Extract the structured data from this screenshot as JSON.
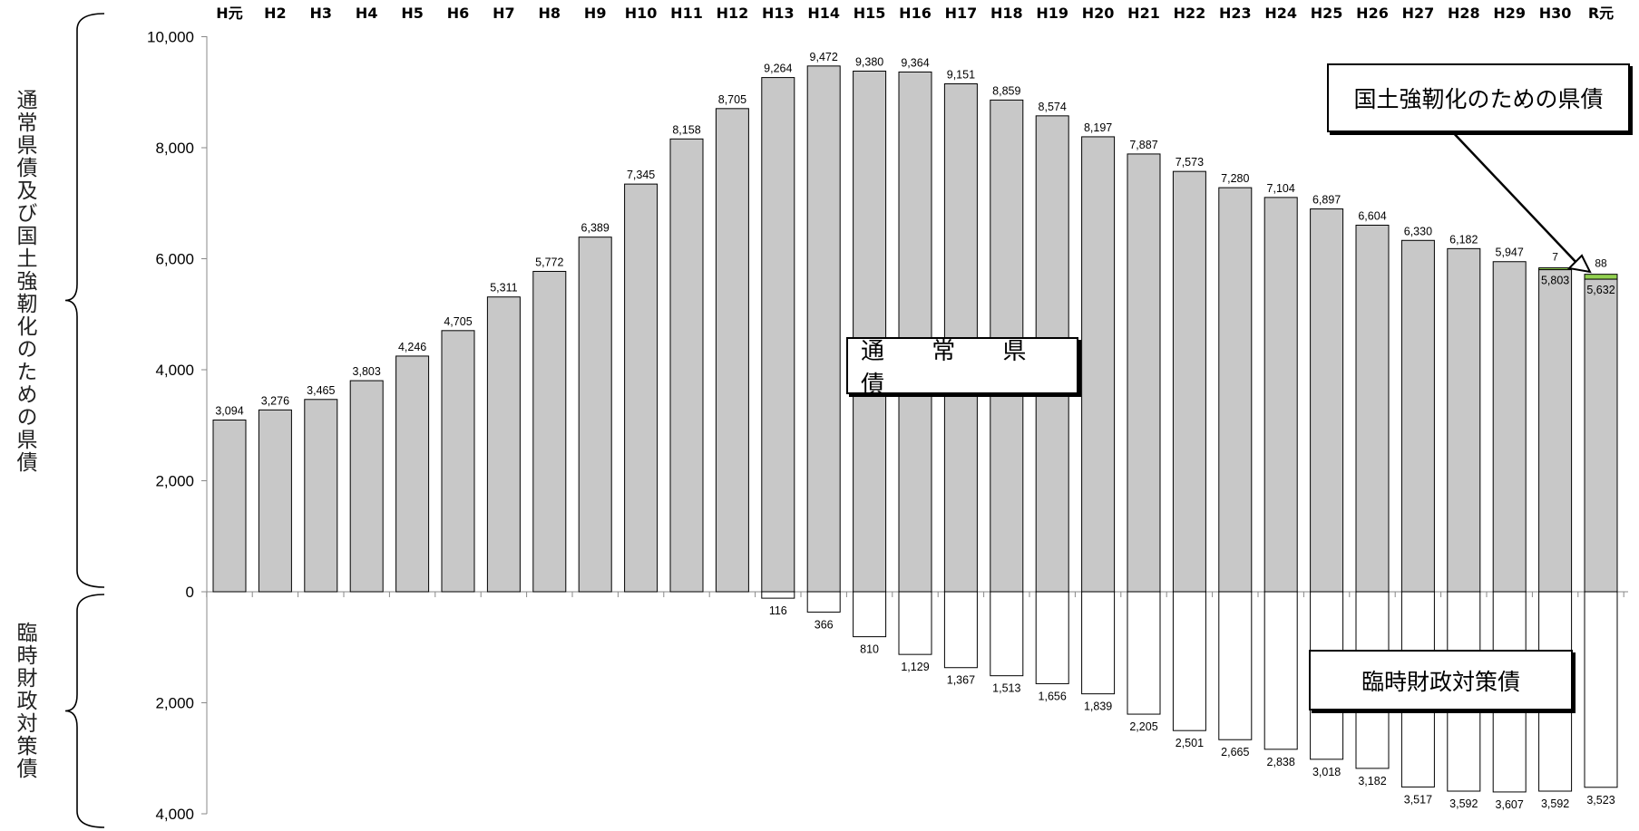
{
  "chart_data": {
    "type": "bar",
    "categories": [
      "H元",
      "H2",
      "H3",
      "H4",
      "H5",
      "H6",
      "H7",
      "H8",
      "H9",
      "H10",
      "H11",
      "H12",
      "H13",
      "H14",
      "H15",
      "H16",
      "H17",
      "H18",
      "H19",
      "H20",
      "H21",
      "H22",
      "H23",
      "H24",
      "H25",
      "H26",
      "H27",
      "H28",
      "H29",
      "H30",
      "R元"
    ],
    "series": [
      {
        "name": "通 常 県 債",
        "values": [
          3094,
          3276,
          3465,
          3803,
          4246,
          4705,
          5311,
          5772,
          6389,
          7345,
          8158,
          8705,
          9264,
          9472,
          9380,
          9364,
          9151,
          8859,
          8574,
          8197,
          7887,
          7573,
          7280,
          7104,
          6897,
          6604,
          6330,
          6182,
          5947,
          5803,
          5632
        ]
      },
      {
        "name": "国土強靭化のための県債",
        "values": [
          0,
          0,
          0,
          0,
          0,
          0,
          0,
          0,
          0,
          0,
          0,
          0,
          0,
          0,
          0,
          0,
          0,
          0,
          0,
          0,
          0,
          0,
          0,
          0,
          0,
          0,
          0,
          0,
          0,
          7,
          88
        ]
      },
      {
        "name": "臨時財政対策債",
        "values": [
          0,
          0,
          0,
          0,
          0,
          0,
          0,
          0,
          0,
          0,
          0,
          0,
          116,
          366,
          810,
          1129,
          1367,
          1513,
          1656,
          1839,
          2205,
          2501,
          2665,
          2838,
          3018,
          3182,
          3517,
          3592,
          3607,
          3592,
          3523
        ]
      }
    ],
    "y_top_ticks": [
      "0",
      "2,000",
      "4,000",
      "6,000",
      "8,000",
      "10,000"
    ],
    "y_bottom_ticks": [
      "2,000",
      "4,000"
    ],
    "ylim_top": [
      0,
      10000
    ],
    "ylim_bottom": [
      0,
      4000
    ],
    "ylabel_top": "通常県債及び国土強靭化のための県債",
    "ylabel_bottom": "臨時財政対策債",
    "colors": {
      "normal": "#c8c8c8",
      "kokudo": "#92d050",
      "rinji": "#ffffff",
      "stroke": "#000000"
    }
  }
}
